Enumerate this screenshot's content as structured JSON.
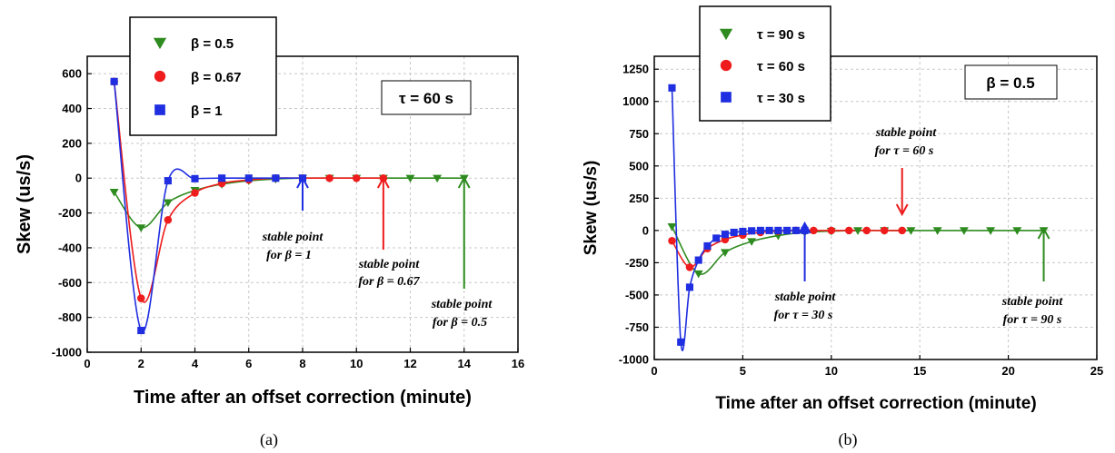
{
  "colors": {
    "green": "#2e8b1f",
    "red": "#ee1c1c",
    "blue": "#1f2ee0",
    "grid": "#c8c8c8"
  },
  "chart_data": [
    {
      "type": "line",
      "panel_label": "(a)",
      "xlabel": "Time after an offset correction (minute)",
      "ylabel": "Skew (us/s)",
      "xlim": [
        0,
        16
      ],
      "ylim": [
        -1000,
        700
      ],
      "xticks": [
        0,
        2,
        4,
        6,
        8,
        10,
        12,
        14,
        16
      ],
      "yticks": [
        -1000,
        -800,
        -600,
        -400,
        -200,
        0,
        200,
        400,
        600
      ],
      "grid": true,
      "legend_position": "top-left",
      "parameter_box": "τ = 60 s",
      "series": [
        {
          "name": "β = 0.5",
          "marker": "triangle-down",
          "color": "#2e8b1f",
          "x": [
            1,
            2,
            3,
            4,
            5,
            6,
            7,
            8,
            9,
            10,
            11,
            12,
            13,
            14
          ],
          "y": [
            -80,
            -285,
            -140,
            -70,
            -35,
            -15,
            -5,
            0,
            0,
            0,
            0,
            0,
            0,
            0
          ]
        },
        {
          "name": "β = 0.67",
          "marker": "circle",
          "color": "#ee1c1c",
          "x": [
            1,
            2,
            3,
            4,
            5,
            6,
            7,
            8,
            9,
            10,
            11
          ],
          "y": [
            555,
            -690,
            -240,
            -85,
            -30,
            -10,
            0,
            0,
            0,
            0,
            0
          ]
        },
        {
          "name": "β = 1",
          "marker": "square",
          "color": "#1f2ee0",
          "x": [
            1,
            2,
            3,
            4,
            5,
            6,
            7,
            8
          ],
          "y": [
            555,
            -875,
            -15,
            -3,
            0,
            0,
            0,
            0
          ]
        }
      ],
      "annotations": [
        {
          "line1": "stable point",
          "line2": "for β = 1",
          "x": 8,
          "color": "#1f2ee0"
        },
        {
          "line1": "stable point",
          "line2": "for β = 0.67",
          "x": 11,
          "color": "#ee1c1c"
        },
        {
          "line1": "stable point",
          "line2": "for β = 0.5",
          "x": 14,
          "color": "#2e8b1f"
        }
      ]
    },
    {
      "type": "line",
      "panel_label": "(b)",
      "xlabel": "Time after an offset correction (minute)",
      "ylabel": "Skew (us/s)",
      "xlim": [
        0,
        25
      ],
      "ylim": [
        -1000,
        1350
      ],
      "xticks": [
        0,
        5,
        10,
        15,
        20,
        25
      ],
      "yticks": [
        -1000,
        -750,
        -500,
        -250,
        0,
        250,
        500,
        750,
        1000,
        1250
      ],
      "grid": true,
      "legend_position": "top-left",
      "parameter_box": "β = 0.5",
      "series": [
        {
          "name": "τ = 90 s",
          "marker": "triangle-down",
          "color": "#2e8b1f",
          "x": [
            1,
            2.5,
            4,
            5.5,
            7,
            8.5,
            10,
            11.5,
            13,
            14.5,
            16,
            17.5,
            19,
            20.5,
            22
          ],
          "y": [
            30,
            -335,
            -170,
            -85,
            -40,
            -15,
            -5,
            0,
            0,
            0,
            0,
            0,
            0,
            0,
            0
          ]
        },
        {
          "name": "τ = 60 s",
          "marker": "circle",
          "color": "#ee1c1c",
          "x": [
            1,
            2,
            3,
            4,
            5,
            6,
            7,
            8,
            9,
            10,
            11,
            12,
            13,
            14
          ],
          "y": [
            -80,
            -285,
            -140,
            -70,
            -35,
            -15,
            -5,
            0,
            0,
            0,
            0,
            0,
            0,
            0
          ]
        },
        {
          "name": "τ = 30 s",
          "marker": "square",
          "color": "#1f2ee0",
          "x": [
            1,
            1.5,
            2,
            2.5,
            3,
            3.5,
            4,
            4.5,
            5,
            5.5,
            6,
            6.5,
            7,
            7.5,
            8,
            8.5
          ],
          "y": [
            1105,
            -865,
            -440,
            -230,
            -120,
            -60,
            -30,
            -15,
            -8,
            -3,
            0,
            0,
            0,
            0,
            0,
            0
          ]
        }
      ],
      "annotations": [
        {
          "line1": "stable point",
          "line2": "for τ = 30 s",
          "x": 8.5,
          "color": "#1f2ee0"
        },
        {
          "line1": "stable point",
          "line2": "for τ = 60 s",
          "x": 14,
          "color": "#ee1c1c"
        },
        {
          "line1": "stable point",
          "line2": "for τ = 90 s",
          "x": 22,
          "color": "#2e8b1f"
        }
      ]
    }
  ]
}
